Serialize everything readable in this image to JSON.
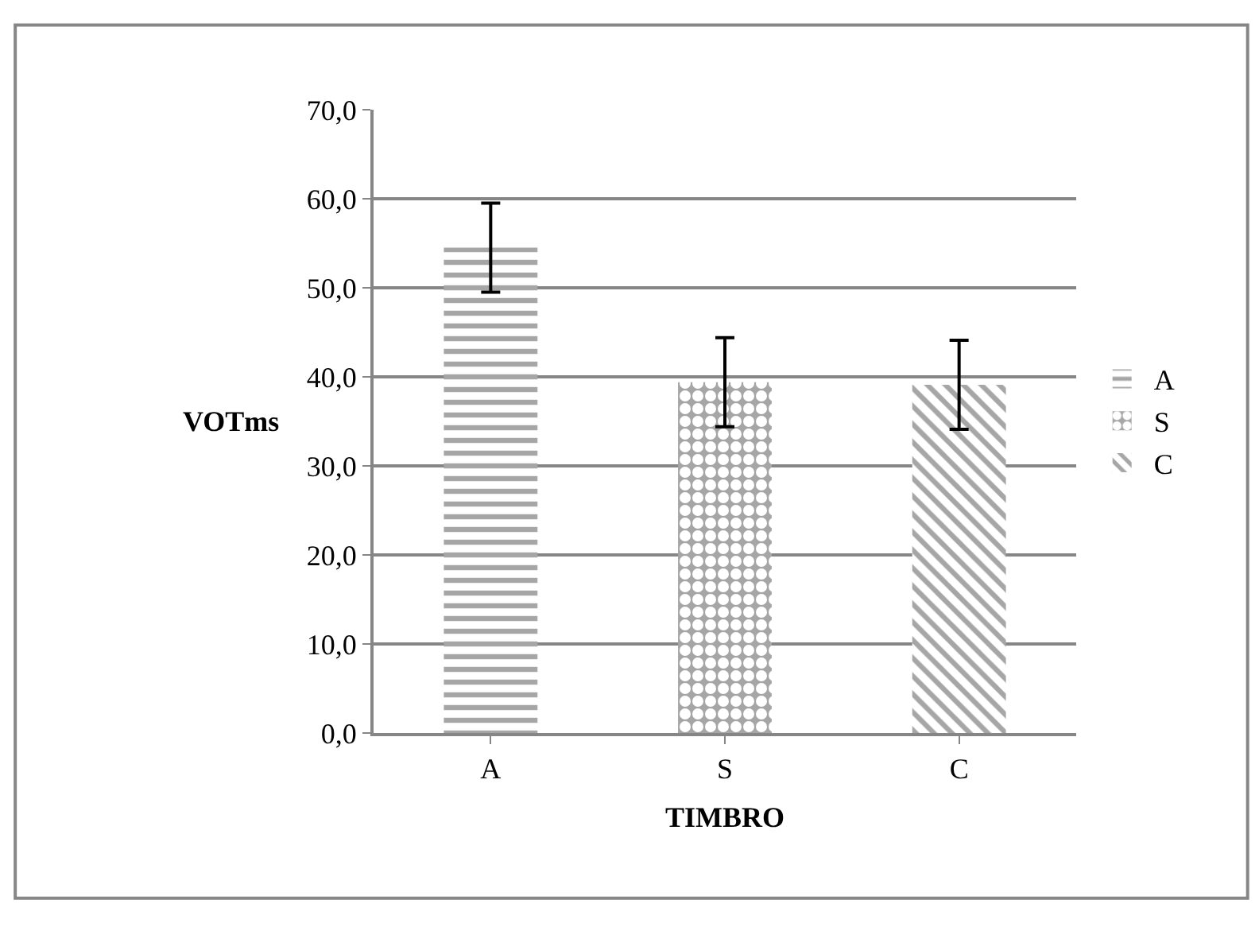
{
  "chart_data": {
    "type": "bar",
    "xlabel": "TIMBRO",
    "ylabel": "VOTms",
    "categories": [
      "A",
      "S",
      "C"
    ],
    "series": [
      {
        "name": "A",
        "color": "#a6a6a6",
        "values": [
          54.5,
          null,
          null
        ],
        "errors": [
          5.0,
          null,
          null
        ]
      },
      {
        "name": "S",
        "color": "#a6a6a6",
        "values": [
          null,
          39.4,
          null
        ],
        "errors": [
          null,
          5.0,
          null
        ]
      },
      {
        "name": "C",
        "color": "#a6a6a6",
        "values": [
          null,
          null,
          39.1
        ],
        "errors": [
          null,
          null,
          5.0
        ]
      }
    ],
    "ylim": [
      0,
      70
    ],
    "yticks": [
      {
        "value": 0,
        "label": "0,0"
      },
      {
        "value": 10,
        "label": "10,0"
      },
      {
        "value": 20,
        "label": "20,0"
      },
      {
        "value": 30,
        "label": "30,0"
      },
      {
        "value": 40,
        "label": "40,0"
      },
      {
        "value": 50,
        "label": "50,0"
      },
      {
        "value": 60,
        "label": "60,0"
      },
      {
        "value": 70,
        "label": "70,0"
      }
    ],
    "grid": "y",
    "legend": "right"
  }
}
